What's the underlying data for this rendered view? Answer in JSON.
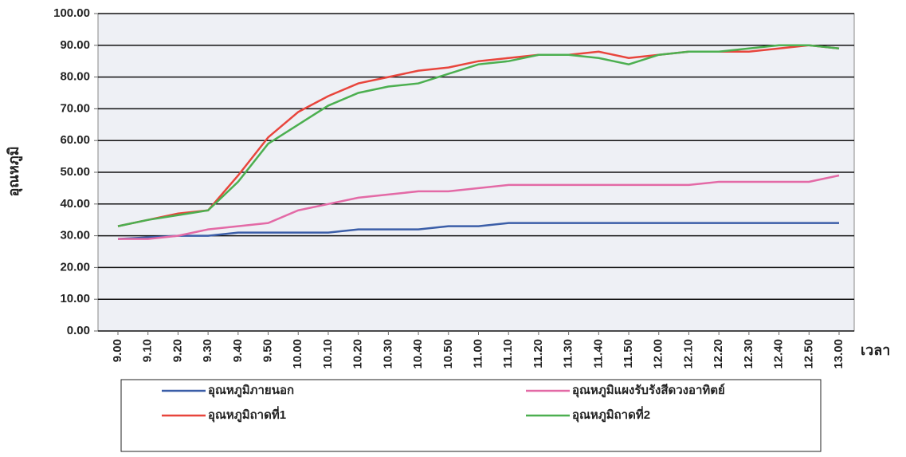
{
  "chart_data": {
    "type": "line",
    "y_label": "อุณหภูมิ",
    "x_label": "เวลา",
    "categories": [
      "9.00",
      "9.10",
      "9.20",
      "9.30",
      "9.40",
      "9.50",
      "10.00",
      "10.10",
      "10.20",
      "10.30",
      "10.40",
      "10.50",
      "11.00",
      "11.10",
      "11.20",
      "11.30",
      "11.40",
      "11.50",
      "12.00",
      "12.10",
      "12.20",
      "12.30",
      "12.40",
      "12.50",
      "13.00"
    ],
    "series": [
      {
        "name": "อุณหภูมิภายนอก",
        "color": "#3b5ea8",
        "values": [
          29,
          29.5,
          30,
          30,
          31,
          31,
          31,
          31,
          32,
          32,
          32,
          33,
          33,
          34,
          34,
          34,
          34,
          34,
          34,
          34,
          34,
          34,
          34,
          34,
          34
        ]
      },
      {
        "name": "อุณหภูมิแผงรับรังสีดวงอาทิตย์",
        "color": "#e36aa6",
        "values": [
          29,
          29,
          30,
          32,
          33,
          34,
          38,
          40,
          42,
          43,
          44,
          44,
          45,
          46,
          46,
          46,
          46,
          46,
          46,
          46,
          47,
          47,
          47,
          47,
          49
        ]
      },
      {
        "name": "อุณหภูมิถาดที่1",
        "color": "#e8453c",
        "values": [
          33,
          35,
          37,
          38,
          49,
          61,
          69,
          74,
          78,
          80,
          82,
          83,
          85,
          86,
          87,
          87,
          88,
          86,
          87,
          88,
          88,
          88,
          89,
          90,
          89
        ]
      },
      {
        "name": "อุณหภูมิถาดที่2",
        "color": "#4caf50",
        "values": [
          33,
          35,
          36.5,
          38,
          47,
          59,
          65,
          71,
          75,
          77,
          78,
          81,
          84,
          85,
          87,
          87,
          86,
          84,
          87,
          88,
          88,
          89,
          90,
          90,
          89
        ]
      }
    ],
    "ylim": [
      0,
      100
    ],
    "yticks": [
      {
        "value": 0,
        "label": "0.00"
      },
      {
        "value": 10,
        "label": "10.00"
      },
      {
        "value": 20,
        "label": "20.00"
      },
      {
        "value": 30,
        "label": "30.00"
      },
      {
        "value": 40,
        "label": "40.00"
      },
      {
        "value": 50,
        "label": "50.00"
      },
      {
        "value": 60,
        "label": "60.00"
      },
      {
        "value": 70,
        "label": "70.00"
      },
      {
        "value": 80,
        "label": "80.00"
      },
      {
        "value": 90,
        "label": "90.00"
      },
      {
        "value": 100,
        "label": "100.00"
      }
    ],
    "grid": true,
    "legend": "bottom"
  }
}
